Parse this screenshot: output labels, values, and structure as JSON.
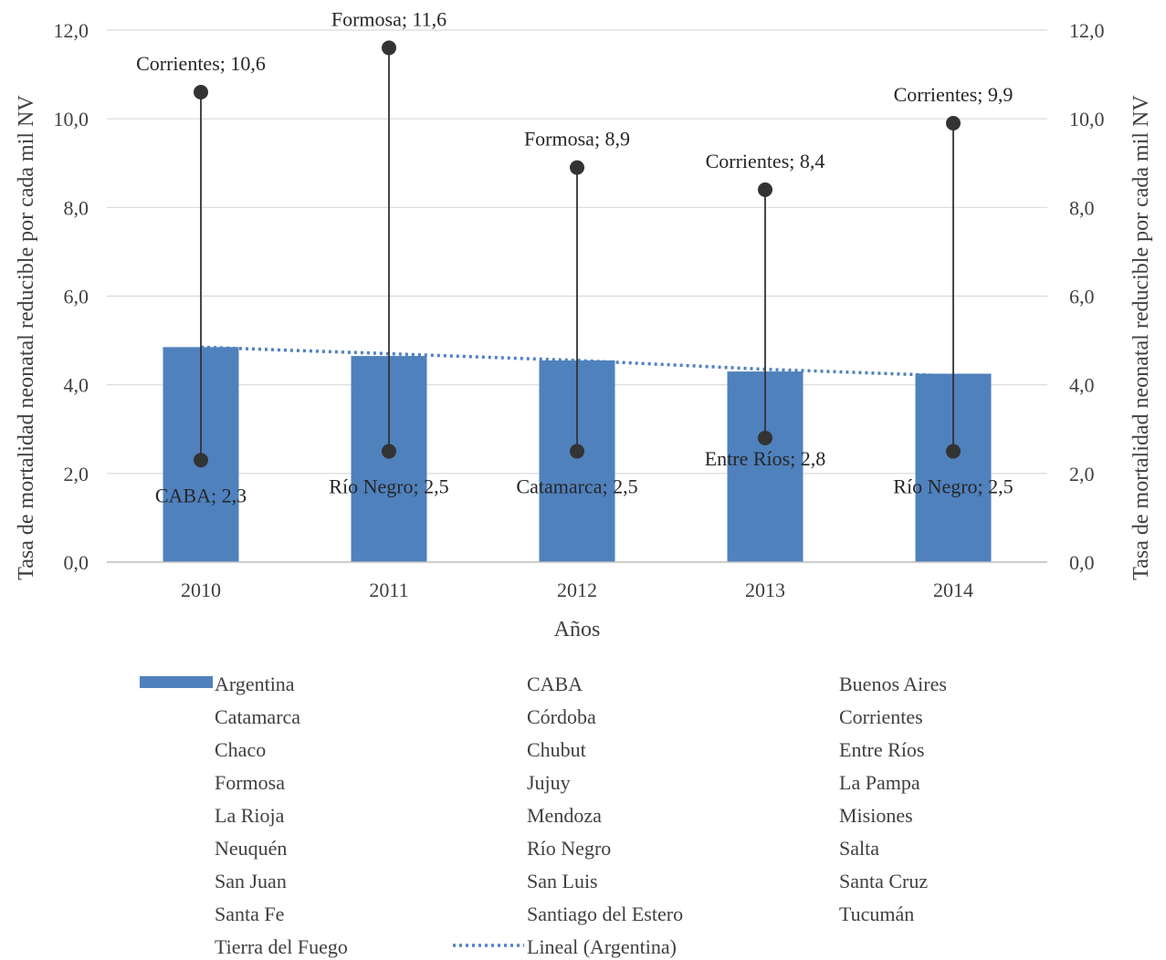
{
  "chart_data": {
    "type": "bar",
    "xlabel": "Años",
    "ylabel_left": "Tasa de mortalidad neonatal reducible por cada mil NV",
    "ylabel_right": "Tasa de mortalidad neonatal reducible por cada mil NV",
    "ylim": [
      0,
      12
    ],
    "yticks": [
      "0,0",
      "2,0",
      "4,0",
      "6,0",
      "8,0",
      "10,0",
      "12,0"
    ],
    "grid": true,
    "legend_position": "bottom",
    "categories": [
      "2010",
      "2011",
      "2012",
      "2013",
      "2014"
    ],
    "series": [
      {
        "name": "Argentina",
        "type": "bar",
        "color": "#4f81bd",
        "values": [
          4.85,
          4.65,
          4.55,
          4.3,
          4.25
        ]
      },
      {
        "name": "Lineal (Argentina)",
        "type": "trendline",
        "color": "#4f81bd",
        "style": "dotted",
        "values": [
          4.85,
          4.7,
          4.55,
          4.35,
          4.2
        ]
      }
    ],
    "range_markers": [
      {
        "category": "2010",
        "max": 10.6,
        "min": 2.3,
        "max_label": "Corrientes; 10,6",
        "min_label": "CABA; 2,3"
      },
      {
        "category": "2011",
        "max": 11.6,
        "min": 2.5,
        "max_label": "Formosa; 11,6",
        "min_label": "Río Negro; 2,5"
      },
      {
        "category": "2012",
        "max": 8.9,
        "min": 2.5,
        "max_label": "Formosa; 8,9",
        "min_label": "Catamarca; 2,5"
      },
      {
        "category": "2013",
        "max": 8.4,
        "min": 2.8,
        "max_label": "Corrientes; 8,4",
        "min_label": "Entre Ríos; 2,8"
      },
      {
        "category": "2014",
        "max": 9.9,
        "min": 2.5,
        "max_label": "Corrientes; 9,9",
        "min_label": "Río Negro; 2,5"
      }
    ],
    "marker_color": "#333333",
    "legend": [
      [
        "Argentina",
        "CABA",
        "Buenos Aires"
      ],
      [
        "Catamarca",
        "Córdoba",
        "Corrientes"
      ],
      [
        "Chaco",
        "Chubut",
        "Entre Ríos"
      ],
      [
        "Formosa",
        "Jujuy",
        "La Pampa"
      ],
      [
        "La Rioja",
        "Mendoza",
        "Misiones"
      ],
      [
        "Neuquén",
        "Río Negro",
        "Salta"
      ],
      [
        "San Juan",
        "San Luis",
        "Santa Cruz"
      ],
      [
        "Santa Fe",
        "Santiago del Estero",
        "Tucumán"
      ],
      [
        "Tierra del Fuego",
        "Lineal (Argentina)"
      ]
    ]
  }
}
